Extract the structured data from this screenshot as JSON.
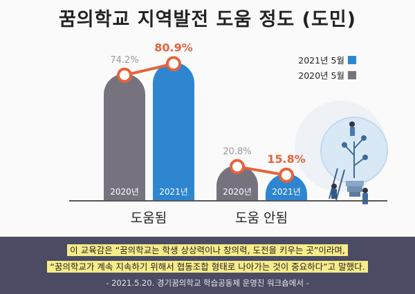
{
  "title": "꿈의학교 지역발전 도움 정도 (도민)",
  "colors": {
    "bar_2021": "#2e86d1",
    "bar_2020": "#76737f",
    "trend": "#e8623a",
    "highlight": "#e8623a",
    "value_2020": "#999999",
    "baseline": "#555555"
  },
  "chart_data": {
    "type": "bar",
    "categories": [
      "도움됨",
      "도움 안됨"
    ],
    "series": [
      {
        "name": "2020년 5월",
        "bar_label": "2020년",
        "values": [
          74.2,
          20.8
        ],
        "value_labels": [
          "74.2%",
          "20.8%"
        ]
      },
      {
        "name": "2021년 5월",
        "bar_label": "2021년",
        "values": [
          80.9,
          15.8
        ],
        "value_labels": [
          "80.9%",
          "15.8%"
        ]
      }
    ],
    "ylim": [
      0,
      100
    ],
    "legend": "top-right"
  },
  "quote": {
    "line1": "이 교육감은 “꿈의학교는 학생 상상력이나 창의력, 도전을 키우는 곳”이라며,",
    "line2": "“꿈의학교가 계속 지속하기 위해서 협동조합 형태로 나아가는 것이 중요하다”고 말했다."
  },
  "source": "- 2021.5.20. 경기꿈의학교 학습공동체 운영진 워크숍에서 -"
}
